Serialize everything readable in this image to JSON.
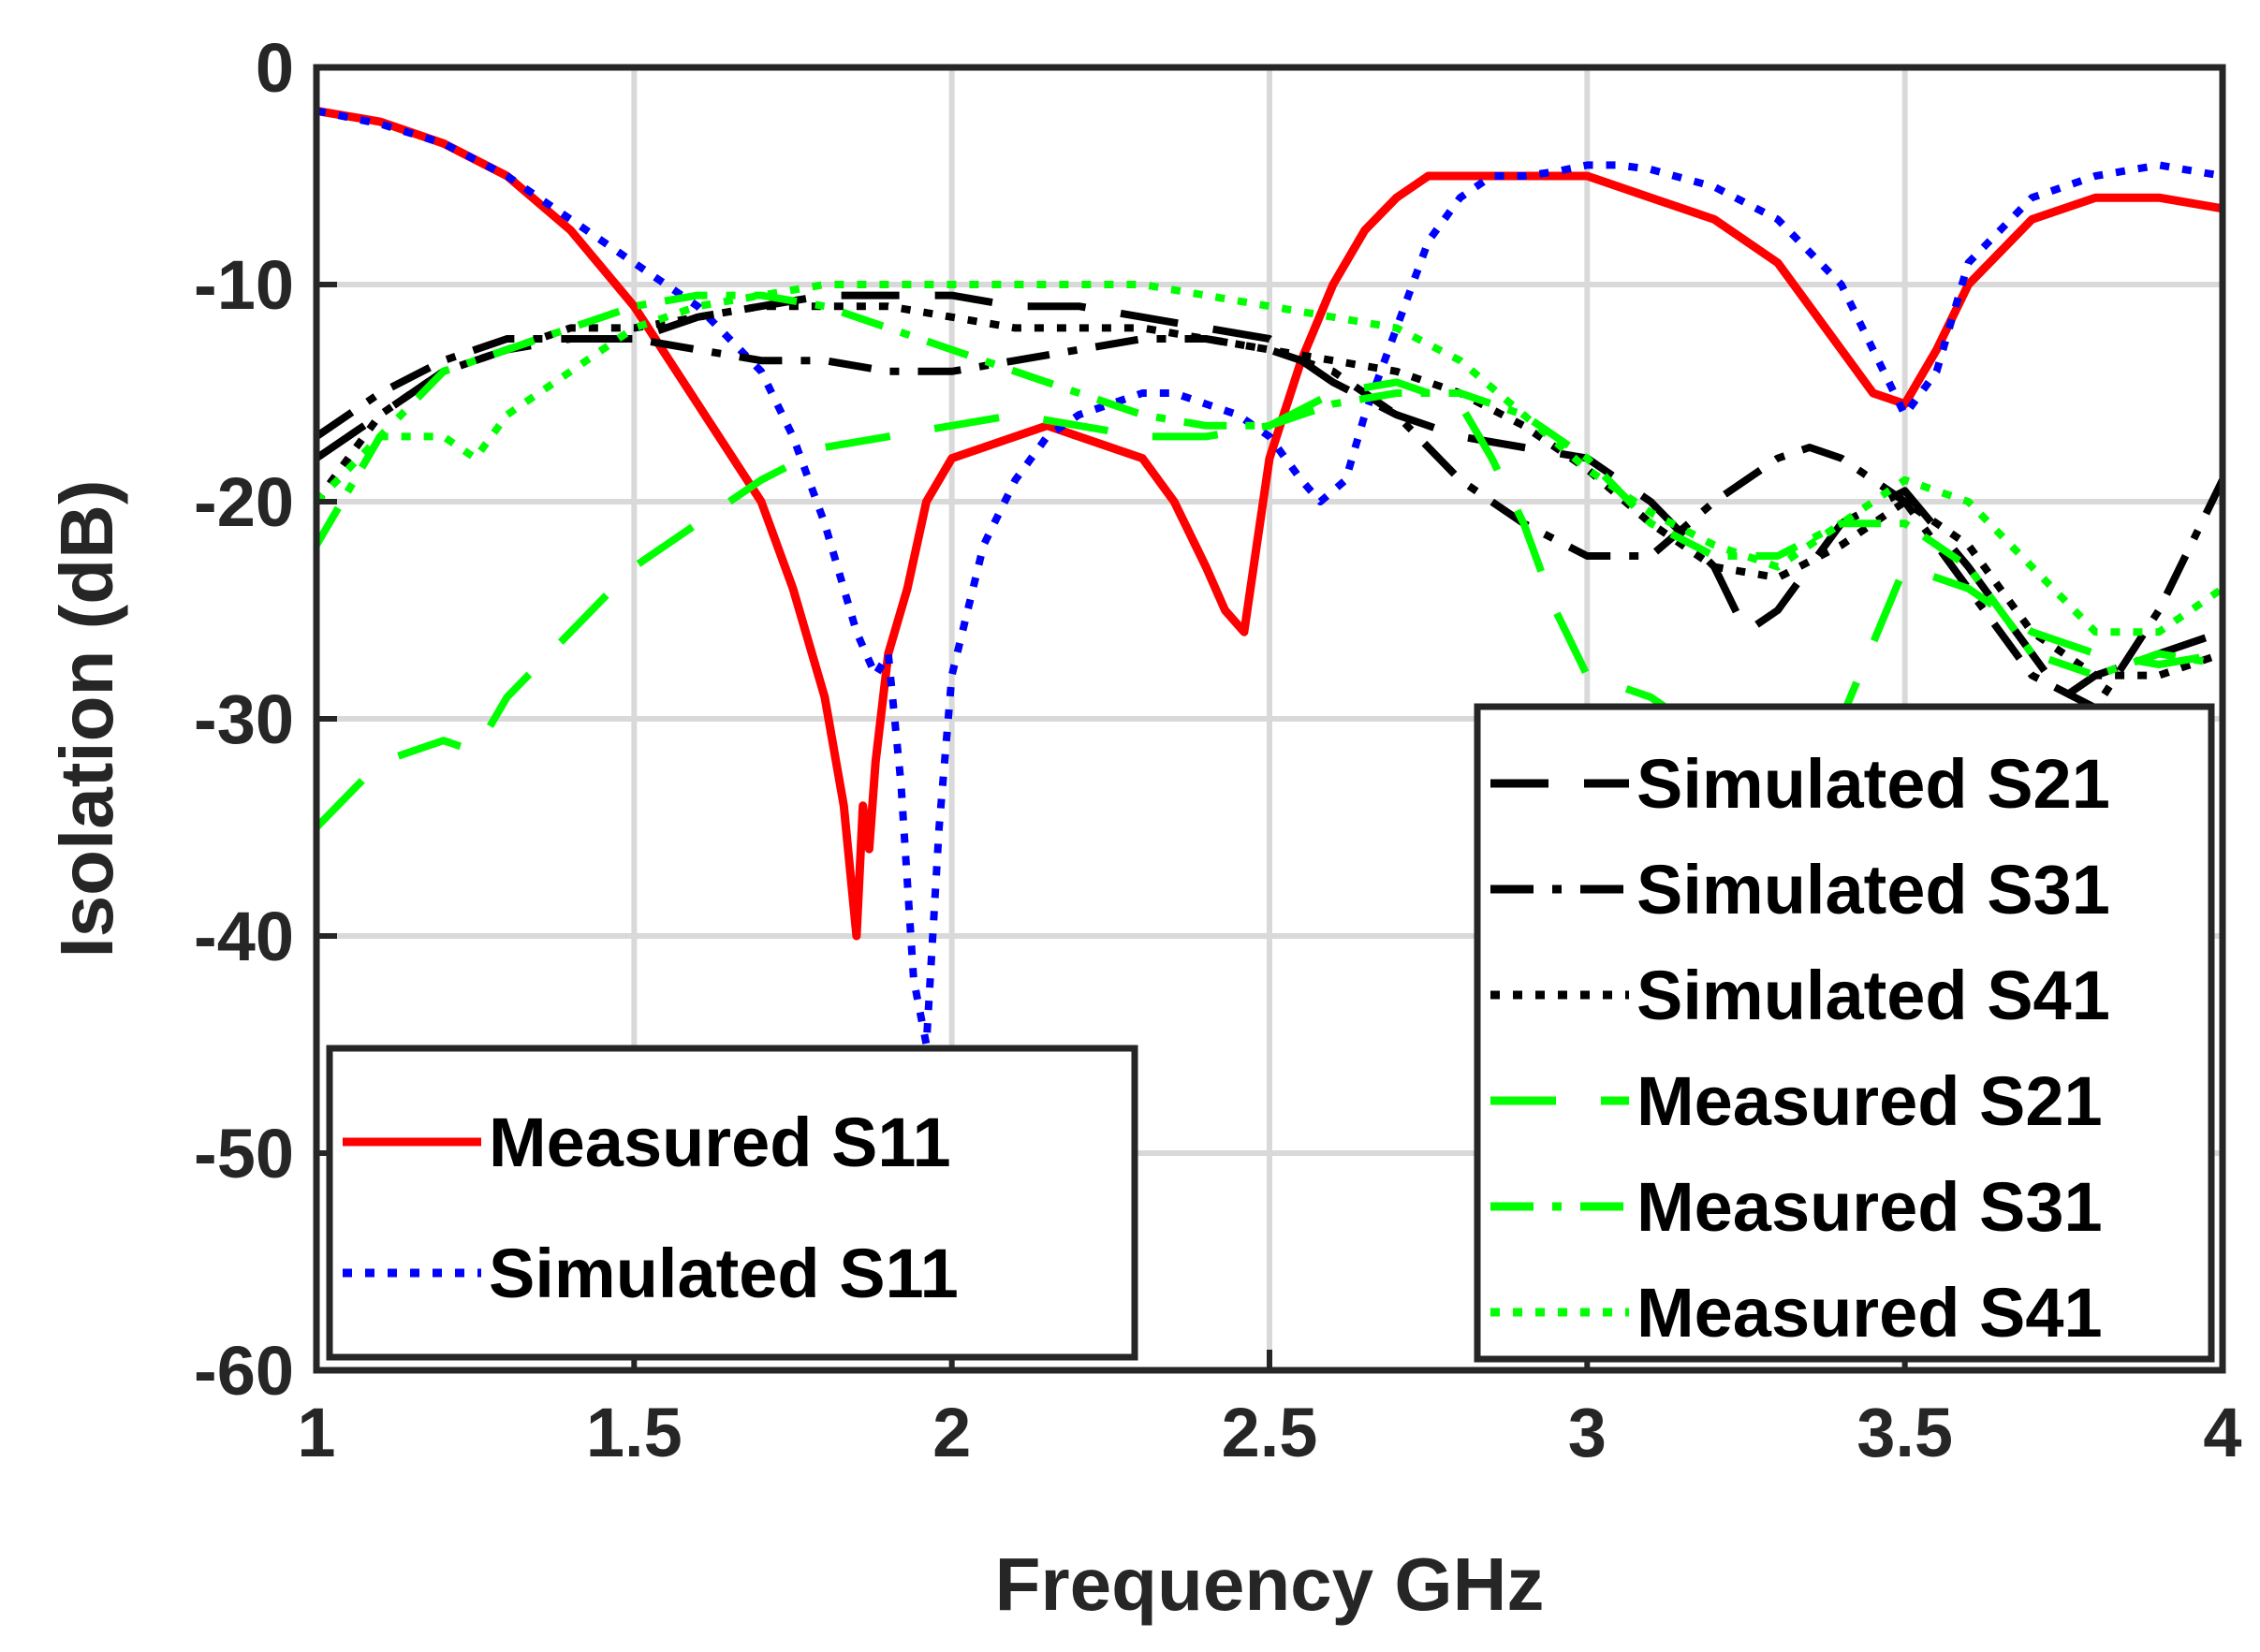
{
  "chart_data": {
    "type": "line",
    "title": "",
    "xlabel": "Frequency GHz",
    "ylabel": "Isolation (dB)",
    "xlim": [
      1,
      4
    ],
    "ylim": [
      -60,
      0
    ],
    "xticks": [
      1,
      1.5,
      2,
      2.5,
      3,
      3.5,
      4
    ],
    "xtick_labels": [
      "1",
      "1.5",
      "2",
      "2.5",
      "3",
      "3.5",
      "4"
    ],
    "yticks": [
      0,
      -10,
      -20,
      -30,
      -40,
      -50,
      -60
    ],
    "ytick_labels": [
      "0",
      "-10",
      "-20",
      "-30",
      "-40",
      "-50",
      "-60"
    ],
    "grid": true,
    "legends": [
      {
        "placement": "bottom-left",
        "entries": [
          0,
          1
        ]
      },
      {
        "placement": "bottom-right",
        "entries": [
          2,
          3,
          4,
          5,
          6,
          7
        ]
      }
    ],
    "series": [
      {
        "name": "Measured S11",
        "color": "#ff0000",
        "dash": "solid",
        "x": [
          1.0,
          1.1,
          1.2,
          1.3,
          1.4,
          1.5,
          1.6,
          1.7,
          1.75,
          1.8,
          1.83,
          1.85,
          1.86,
          1.87,
          1.88,
          1.9,
          1.93,
          1.96,
          2.0,
          2.05,
          2.1,
          2.15,
          2.2,
          2.25,
          2.3,
          2.35,
          2.4,
          2.43,
          2.46,
          2.48,
          2.5,
          2.55,
          2.6,
          2.65,
          2.7,
          2.75,
          2.8,
          2.85,
          2.9,
          2.95,
          3.0,
          3.05,
          3.1,
          3.2,
          3.3,
          3.4,
          3.45,
          3.5,
          3.55,
          3.6,
          3.7,
          3.8,
          3.9,
          4.0
        ],
        "y": [
          -2,
          -2.5,
          -3.5,
          -5,
          -7.5,
          -11,
          -15.5,
          -20,
          -24,
          -29,
          -34,
          -40,
          -34,
          -36,
          -32,
          -27,
          -24,
          -20,
          -18,
          -17.5,
          -17,
          -16.5,
          -17,
          -17.5,
          -18,
          -20,
          -23,
          -25,
          -26,
          -22,
          -18,
          -13.5,
          -10,
          -7.5,
          -6,
          -5,
          -5,
          -5,
          -5,
          -5,
          -5,
          -5.5,
          -6,
          -7,
          -9,
          -13,
          -15,
          -15.5,
          -13,
          -10,
          -7,
          -6,
          -6,
          -6.5
        ]
      },
      {
        "name": "Simulated S11",
        "color": "#0000ff",
        "dash": "dotted",
        "x": [
          1.0,
          1.1,
          1.2,
          1.3,
          1.4,
          1.5,
          1.6,
          1.7,
          1.75,
          1.8,
          1.85,
          1.88,
          1.9,
          1.92,
          1.94,
          1.96,
          1.98,
          2.0,
          2.05,
          2.1,
          2.15,
          2.2,
          2.25,
          2.3,
          2.35,
          2.4,
          2.45,
          2.5,
          2.55,
          2.58,
          2.62,
          2.65,
          2.7,
          2.75,
          2.8,
          2.85,
          2.9,
          2.95,
          3.0,
          3.05,
          3.1,
          3.2,
          3.3,
          3.4,
          3.45,
          3.5,
          3.55,
          3.6,
          3.7,
          3.8,
          3.9,
          4.0
        ],
        "y": [
          -2,
          -2.6,
          -3.5,
          -5,
          -7,
          -9,
          -11,
          -14,
          -17,
          -21,
          -26,
          -28,
          -27,
          -33,
          -42,
          -45,
          -35,
          -28,
          -22,
          -19,
          -17,
          -16,
          -15.5,
          -15,
          -15,
          -15.5,
          -16,
          -17,
          -19,
          -20,
          -19,
          -16,
          -12,
          -8,
          -6,
          -5,
          -5,
          -4.8,
          -4.5,
          -4.5,
          -4.7,
          -5.5,
          -7,
          -10,
          -13,
          -16,
          -14,
          -9,
          -6,
          -5,
          -4.5,
          -5
        ]
      },
      {
        "name": "Simulated S21",
        "color": "#000000",
        "dash": "dashed",
        "x": [
          1.0,
          1.1,
          1.2,
          1.3,
          1.4,
          1.5,
          1.6,
          1.7,
          1.8,
          1.9,
          2.0,
          2.1,
          2.2,
          2.3,
          2.4,
          2.5,
          2.6,
          2.7,
          2.8,
          2.9,
          3.0,
          3.1,
          3.2,
          3.25,
          3.3,
          3.4,
          3.5,
          3.6,
          3.7,
          3.75,
          3.8,
          3.9,
          4.0
        ],
        "y": [
          -18,
          -16,
          -14,
          -13,
          -12.5,
          -12.5,
          -11.5,
          -11,
          -10.5,
          -10.5,
          -10.5,
          -11,
          -11,
          -11.5,
          -12,
          -12.5,
          -14.5,
          -16,
          -17,
          -17.5,
          -18,
          -20,
          -23,
          -26,
          -25,
          -21,
          -19.5,
          -23,
          -27,
          -29,
          -28,
          -27,
          -26
        ]
      },
      {
        "name": "Simulated S31",
        "color": "#000000",
        "dash": "dashdot",
        "x": [
          1.0,
          1.1,
          1.2,
          1.3,
          1.4,
          1.5,
          1.6,
          1.7,
          1.8,
          1.9,
          2.0,
          2.1,
          2.2,
          2.3,
          2.4,
          2.5,
          2.6,
          2.7,
          2.8,
          2.9,
          3.0,
          3.1,
          3.2,
          3.3,
          3.35,
          3.4,
          3.5,
          3.6,
          3.7,
          3.8,
          3.9,
          4.0
        ],
        "y": [
          -17,
          -15,
          -13.5,
          -12.5,
          -12.5,
          -12.5,
          -13,
          -13.5,
          -13.5,
          -14,
          -14,
          -13.5,
          -13,
          -12.5,
          -12.5,
          -13,
          -14,
          -16,
          -19,
          -21,
          -22.5,
          -22.5,
          -20,
          -18,
          -17.5,
          -18,
          -20,
          -24,
          -28,
          -29.5,
          -25,
          -19
        ]
      },
      {
        "name": "Simulated S41",
        "color": "#000000",
        "dash": "dotted",
        "x": [
          1.0,
          1.1,
          1.2,
          1.3,
          1.4,
          1.5,
          1.6,
          1.7,
          1.8,
          1.9,
          2.0,
          2.1,
          2.2,
          2.3,
          2.4,
          2.5,
          2.6,
          2.7,
          2.8,
          2.9,
          3.0,
          3.1,
          3.2,
          3.3,
          3.4,
          3.5,
          3.6,
          3.7,
          3.8,
          3.9,
          4.0
        ],
        "y": [
          -20,
          -16,
          -14,
          -13,
          -12,
          -12,
          -11.5,
          -11,
          -11,
          -11,
          -11.5,
          -12,
          -12,
          -12,
          -12.5,
          -13,
          -13.5,
          -14,
          -15,
          -16.5,
          -18.5,
          -21,
          -23,
          -23.5,
          -22,
          -20,
          -22,
          -26,
          -28,
          -28,
          -27
        ]
      },
      {
        "name": "Measured S21",
        "color": "#00ff00",
        "dash": "longdash",
        "x": [
          1.0,
          1.1,
          1.2,
          1.25,
          1.3,
          1.4,
          1.5,
          1.6,
          1.7,
          1.8,
          1.9,
          2.0,
          2.1,
          2.2,
          2.3,
          2.4,
          2.5,
          2.6,
          2.7,
          2.8,
          2.85,
          2.9,
          2.95,
          3.0,
          3.1,
          3.2,
          3.3,
          3.4,
          3.5,
          3.6,
          3.7,
          3.8,
          3.9,
          4.0
        ],
        "y": [
          -35,
          -32,
          -31,
          -31.5,
          -29,
          -26,
          -23,
          -21,
          -19,
          -17.5,
          -17,
          -16.5,
          -16,
          -16.5,
          -17,
          -17,
          -16.5,
          -15,
          -14.5,
          -15.5,
          -18,
          -21,
          -25,
          -28,
          -29,
          -31,
          -32,
          -30,
          -23,
          -24,
          -26,
          -27,
          -27.5,
          -27
        ]
      },
      {
        "name": "Measured S31",
        "color": "#00ff00",
        "dash": "dashdot",
        "x": [
          1.0,
          1.1,
          1.2,
          1.3,
          1.4,
          1.5,
          1.6,
          1.7,
          1.8,
          1.9,
          2.0,
          2.1,
          2.2,
          2.3,
          2.4,
          2.5,
          2.6,
          2.7,
          2.8,
          2.9,
          3.0,
          3.1,
          3.2,
          3.3,
          3.4,
          3.5,
          3.6,
          3.7,
          3.8,
          3.9,
          4.0
        ],
        "y": [
          -22,
          -17,
          -14,
          -13,
          -12,
          -11,
          -10.5,
          -10.5,
          -11,
          -12,
          -13,
          -14,
          -15,
          -16,
          -16.5,
          -16.5,
          -15.5,
          -15,
          -15,
          -16,
          -18,
          -21,
          -22.5,
          -22.5,
          -21,
          -21,
          -23,
          -27,
          -28,
          -27,
          -27.5
        ]
      },
      {
        "name": "Measured S41",
        "color": "#00ff00",
        "dash": "dotted",
        "x": [
          1.0,
          1.1,
          1.2,
          1.25,
          1.3,
          1.4,
          1.5,
          1.6,
          1.7,
          1.8,
          1.9,
          2.0,
          2.1,
          2.2,
          2.3,
          2.4,
          2.5,
          2.6,
          2.7,
          2.8,
          2.9,
          3.0,
          3.1,
          3.2,
          3.3,
          3.4,
          3.5,
          3.6,
          3.7,
          3.8,
          3.9,
          4.0
        ],
        "y": [
          -20,
          -17,
          -17,
          -18,
          -16,
          -14,
          -12,
          -11,
          -10.5,
          -10,
          -10,
          -10,
          -10,
          -10,
          -10,
          -10.5,
          -11,
          -11.5,
          -12,
          -13.5,
          -16,
          -18.5,
          -20.5,
          -22,
          -23,
          -21,
          -19,
          -20,
          -23,
          -26,
          -26,
          -24
        ]
      }
    ]
  }
}
